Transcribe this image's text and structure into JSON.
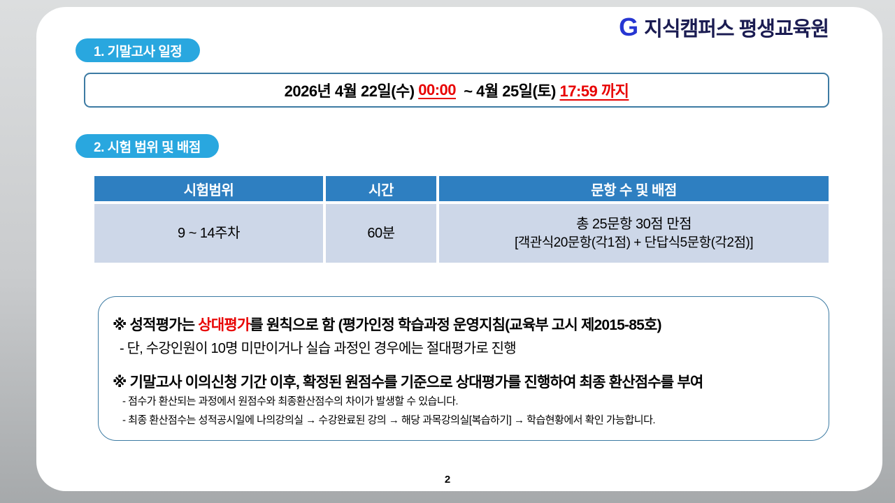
{
  "logo": {
    "icon_glyph": "G",
    "text": "지식캠퍼스 평생교육원"
  },
  "section1": {
    "badge_label": "1. 기말고사 일정",
    "date_prefix": "2026년 4월 22일(수) ",
    "start_time": "00:00",
    "date_middle": "  ~ 4월 25일(토) ",
    "end_time": "17:59 까지"
  },
  "section2": {
    "badge_label": "2. 시험 범위 및 배점",
    "table": {
      "headers": [
        "시험범위",
        "시간",
        "문항 수 및 배점"
      ],
      "row": {
        "range": "9 ~ 14주차",
        "duration": "60분",
        "scoring_line1": "총 25문항 30점 만점",
        "scoring_line2": "[객관식20문항(각1점) + 단답식5문항(각2점)]"
      }
    }
  },
  "notes": {
    "note1_prefix": "※ 성적평가는 ",
    "note1_highlight": "상대평가",
    "note1_suffix": "를 원칙으로 함 (평가인정 학습과정 운영지침(교육부 고시 제2015-85호)",
    "note1_sub": "- 단, 수강인원이 10명 미만이거나 실습 과정인 경우에는 절대평가로 진행",
    "note2": "※ 기말고사 이의신청 기간 이후, 확정된 원점수를 기준으로 상대평가를 진행하여 최종 환산점수를 부여",
    "note2_sub1": "- 점수가 환산되는 과정에서 원점수와 최종환산점수의 차이가 발생할 수 있습니다.",
    "note2_sub2": "- 최종 환산점수는 성적공시일에 나의강의실 → 수강완료된 강의 → 해당 과목강의실[복습하기] → 학습현황에서 확인 가능합니다."
  },
  "page_number": "2",
  "colors": {
    "badge_blue": "#29a7df",
    "table_header_blue": "#2e7fc1",
    "table_body_bg": "#cdd7e8",
    "box_border_teal": "#3d7ba3",
    "highlight_red": "#e80000",
    "logo_blue": "#2636d2",
    "logo_navy": "#1b1c52"
  }
}
